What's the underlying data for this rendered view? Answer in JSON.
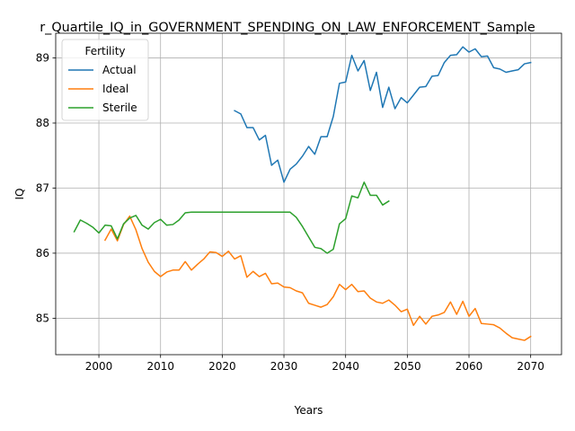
{
  "chart_data": {
    "type": "line",
    "title": "r_Quartile_IQ_in_GOVERNMENT_SPENDING_ON_LAW_ENFORCEMENT_Sample",
    "xlabel": "Years",
    "ylabel": "IQ",
    "xlim": [
      1993,
      2075
    ],
    "ylim": [
      84.44,
      89.38
    ],
    "xticks": [
      2000,
      2010,
      2020,
      2030,
      2040,
      2050,
      2060,
      2070
    ],
    "yticks": [
      85,
      86,
      87,
      88,
      89
    ],
    "grid": true,
    "legend": {
      "title": "Fertility",
      "placement": "top-left"
    },
    "series": [
      {
        "name": "Actual",
        "color": "#1f77b4",
        "x": [
          2022,
          2023,
          2024,
          2025,
          2026,
          2027,
          2028,
          2029,
          2030,
          2031,
          2032,
          2033,
          2034,
          2035,
          2036,
          2037,
          2038,
          2039,
          2040,
          2041,
          2042,
          2043,
          2044,
          2045,
          2046,
          2047,
          2048,
          2049,
          2050,
          2051,
          2052,
          2053,
          2054,
          2055,
          2056,
          2057,
          2058,
          2059,
          2060,
          2061,
          2062,
          2063,
          2064,
          2065,
          2066,
          2067,
          2068,
          2069,
          2070
        ],
        "values": [
          88.19,
          88.14,
          87.93,
          87.93,
          87.74,
          87.81,
          87.35,
          87.43,
          87.09,
          87.29,
          87.37,
          87.49,
          87.64,
          87.52,
          87.79,
          87.79,
          88.1,
          88.61,
          88.63,
          89.04,
          88.8,
          88.96,
          88.5,
          88.78,
          88.24,
          88.55,
          88.22,
          88.39,
          88.31,
          88.43,
          88.55,
          88.56,
          88.72,
          88.73,
          88.93,
          89.04,
          89.05,
          89.17,
          89.09,
          89.14,
          89.02,
          89.03,
          88.85,
          88.83,
          88.78,
          88.8,
          88.82,
          88.91,
          88.93
        ]
      },
      {
        "name": "Ideal",
        "color": "#ff7f0e",
        "x": [
          2001,
          2002,
          2003,
          2004,
          2005,
          2006,
          2007,
          2008,
          2009,
          2010,
          2011,
          2012,
          2013,
          2014,
          2015,
          2016,
          2017,
          2018,
          2019,
          2020,
          2021,
          2022,
          2023,
          2024,
          2025,
          2026,
          2027,
          2028,
          2029,
          2030,
          2031,
          2032,
          2033,
          2034,
          2035,
          2036,
          2037,
          2038,
          2039,
          2040,
          2041,
          2042,
          2043,
          2044,
          2045,
          2046,
          2047,
          2048,
          2049,
          2050,
          2051,
          2052,
          2053,
          2054,
          2055,
          2056,
          2057,
          2058,
          2059,
          2060,
          2061,
          2062,
          2063,
          2064,
          2065,
          2066,
          2067,
          2068,
          2069,
          2070
        ],
        "values": [
          86.2,
          86.37,
          86.19,
          86.44,
          86.57,
          86.36,
          86.07,
          85.86,
          85.72,
          85.64,
          85.71,
          85.74,
          85.74,
          85.87,
          85.74,
          85.83,
          85.91,
          86.02,
          86.01,
          85.95,
          86.03,
          85.91,
          85.96,
          85.63,
          85.72,
          85.64,
          85.69,
          85.53,
          85.54,
          85.48,
          85.47,
          85.42,
          85.39,
          85.23,
          85.2,
          85.17,
          85.21,
          85.33,
          85.52,
          85.44,
          85.52,
          85.41,
          85.42,
          85.31,
          85.25,
          85.23,
          85.28,
          85.2,
          85.1,
          85.14,
          84.89,
          85.03,
          84.91,
          85.03,
          85.05,
          85.09,
          85.25,
          85.06,
          85.26,
          85.03,
          85.15,
          84.92,
          84.91,
          84.9,
          84.85,
          84.77,
          84.7,
          84.68,
          84.66,
          84.72
        ]
      },
      {
        "name": "Sterile",
        "color": "#2ca02c",
        "x": [
          1996,
          1997,
          1998,
          1999,
          2000,
          2001,
          2002,
          2003,
          2004,
          2005,
          2006,
          2007,
          2008,
          2009,
          2010,
          2011,
          2012,
          2013,
          2014,
          2015,
          2016,
          2017,
          2018,
          2019,
          2020,
          2021,
          2022,
          2023,
          2024,
          2025,
          2026,
          2027,
          2028,
          2029,
          2030,
          2031,
          2032,
          2033,
          2034,
          2035,
          2036,
          2037,
          2038,
          2039,
          2040,
          2041,
          2042,
          2043,
          2044,
          2045,
          2046,
          2047
        ],
        "values": [
          86.33,
          86.51,
          86.46,
          86.4,
          86.31,
          86.43,
          86.42,
          86.22,
          86.45,
          86.54,
          86.58,
          86.43,
          86.37,
          86.47,
          86.52,
          86.43,
          86.44,
          86.51,
          86.62,
          86.63,
          86.63,
          86.63,
          86.63,
          86.63,
          86.63,
          86.63,
          86.63,
          86.63,
          86.63,
          86.63,
          86.63,
          86.63,
          86.63,
          86.63,
          86.63,
          86.63,
          86.55,
          86.41,
          86.25,
          86.09,
          86.07,
          86.0,
          86.06,
          86.45,
          86.53,
          86.88,
          86.85,
          87.09,
          86.89,
          86.89,
          86.74,
          86.8
        ]
      }
    ]
  }
}
